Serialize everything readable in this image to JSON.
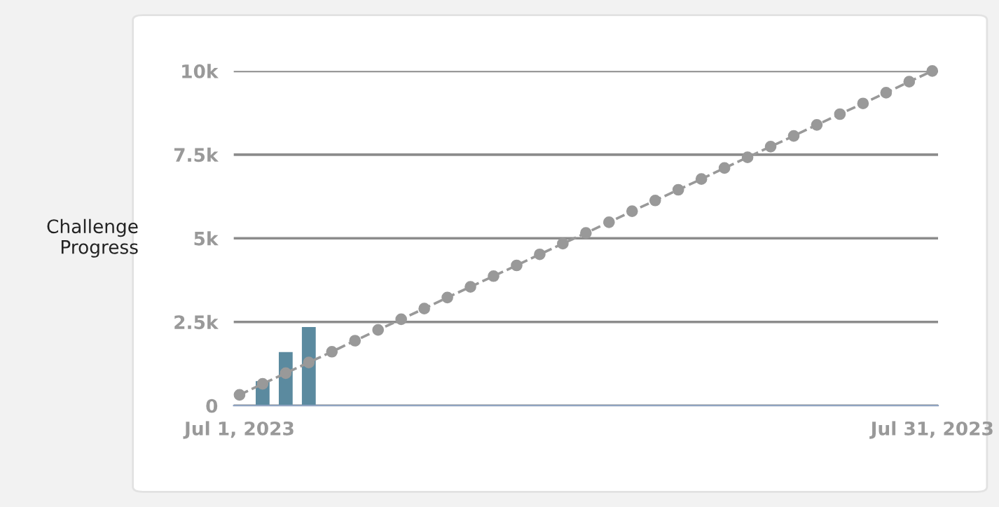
{
  "chart_data": {
    "type": "line",
    "ylabel": "Challenge Progress",
    "xlim": [
      "2023-06-30T18:00",
      "2023-07-31T06:00"
    ],
    "xticks": [
      {
        "value": "2023-07-01",
        "label": "Jul 1, 2023"
      },
      {
        "value": "2023-07-31",
        "label": "Jul 31, 2023"
      }
    ],
    "ylim": [
      0,
      10000
    ],
    "yticks": [
      {
        "value": 0,
        "label": "0"
      },
      {
        "value": 2500,
        "label": "2.5k"
      },
      {
        "value": 5000,
        "label": "5k"
      },
      {
        "value": 7500,
        "label": "7.5k"
      },
      {
        "value": 10000,
        "label": "10k"
      }
    ],
    "grid": "y",
    "series": [
      {
        "type": "bar",
        "color": "#5b8a9f",
        "x": [
          "2023-07-02",
          "2023-07-03",
          "2023-07-04"
        ],
        "values": [
          730,
          1600,
          2350
        ]
      },
      {
        "color": "#999999",
        "marker": "circle",
        "line_style": "dashed",
        "x": [
          "2023-07-01",
          "2023-07-02",
          "2023-07-03",
          "2023-07-04",
          "2023-07-05",
          "2023-07-06",
          "2023-07-07",
          "2023-07-08",
          "2023-07-09",
          "2023-07-10",
          "2023-07-11",
          "2023-07-12",
          "2023-07-13",
          "2023-07-14",
          "2023-07-15",
          "2023-07-16",
          "2023-07-17",
          "2023-07-18",
          "2023-07-19",
          "2023-07-20",
          "2023-07-21",
          "2023-07-22",
          "2023-07-23",
          "2023-07-24",
          "2023-07-25",
          "2023-07-26",
          "2023-07-27",
          "2023-07-28",
          "2023-07-29",
          "2023-07-30",
          "2023-07-31"
        ],
        "values": [
          320,
          650,
          970,
          1290,
          1610,
          1940,
          2260,
          2580,
          2900,
          3230,
          3550,
          3870,
          4190,
          4520,
          4840,
          5160,
          5480,
          5810,
          6130,
          6450,
          6770,
          7100,
          7420,
          7740,
          8060,
          8390,
          8710,
          9030,
          9350,
          9680,
          10000
        ]
      }
    ]
  }
}
